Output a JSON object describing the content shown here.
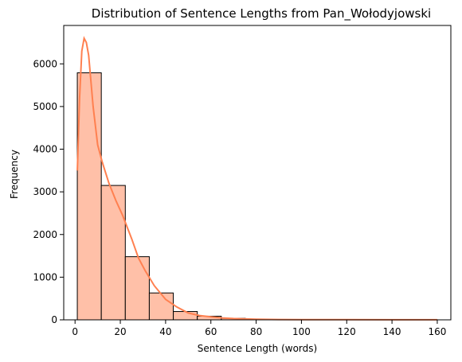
{
  "chart_data": {
    "type": "bar",
    "title": "Distribution of Sentence Lengths from Pan_Wołodyjowski",
    "xlabel": "Sentence Length (words)",
    "ylabel": "Frequency",
    "xlim": [
      -5,
      166
    ],
    "ylim": [
      0,
      6900
    ],
    "xticks": [
      0,
      20,
      40,
      60,
      80,
      100,
      120,
      140,
      160
    ],
    "yticks": [
      0,
      1000,
      2000,
      3000,
      4000,
      5000,
      6000
    ],
    "bins": [
      {
        "x0": 1,
        "x1": 11.6,
        "value": 5790
      },
      {
        "x0": 11.6,
        "x1": 22.2,
        "value": 3150
      },
      {
        "x0": 22.2,
        "x1": 32.8,
        "value": 1480
      },
      {
        "x0": 32.8,
        "x1": 43.4,
        "value": 630
      },
      {
        "x0": 43.4,
        "x1": 54.0,
        "value": 195
      },
      {
        "x0": 54.0,
        "x1": 64.6,
        "value": 85
      },
      {
        "x0": 64.6,
        "x1": 75.2,
        "value": 35
      },
      {
        "x0": 75.2,
        "x1": 85.8,
        "value": 15
      },
      {
        "x0": 85.8,
        "x1": 96.4,
        "value": 8
      },
      {
        "x0": 96.4,
        "x1": 107.0,
        "value": 5
      },
      {
        "x0": 107.0,
        "x1": 117.6,
        "value": 3
      },
      {
        "x0": 117.6,
        "x1": 128.2,
        "value": 2
      },
      {
        "x0": 128.2,
        "x1": 138.8,
        "value": 2
      },
      {
        "x0": 138.8,
        "x1": 149.4,
        "value": 1
      },
      {
        "x0": 149.4,
        "x1": 160.0,
        "value": 1
      }
    ],
    "kde": {
      "x": [
        1,
        2,
        3,
        4,
        5,
        6,
        7,
        8,
        10,
        12,
        15,
        18,
        21,
        25,
        28,
        31,
        35,
        40,
        45,
        50,
        55,
        60,
        65,
        70,
        80,
        90,
        100,
        120,
        140,
        160
      ],
      "y": [
        3500,
        5200,
        6300,
        6600,
        6500,
        6200,
        5600,
        5000,
        4100,
        3700,
        3200,
        2800,
        2450,
        1900,
        1450,
        1150,
        800,
        480,
        300,
        160,
        100,
        70,
        45,
        30,
        15,
        8,
        5,
        3,
        2,
        1
      ]
    },
    "bar_fill": "#ffc0a8",
    "bar_edge": "#000000",
    "kde_color": "#ff8050",
    "grid": false,
    "legend": "none"
  }
}
